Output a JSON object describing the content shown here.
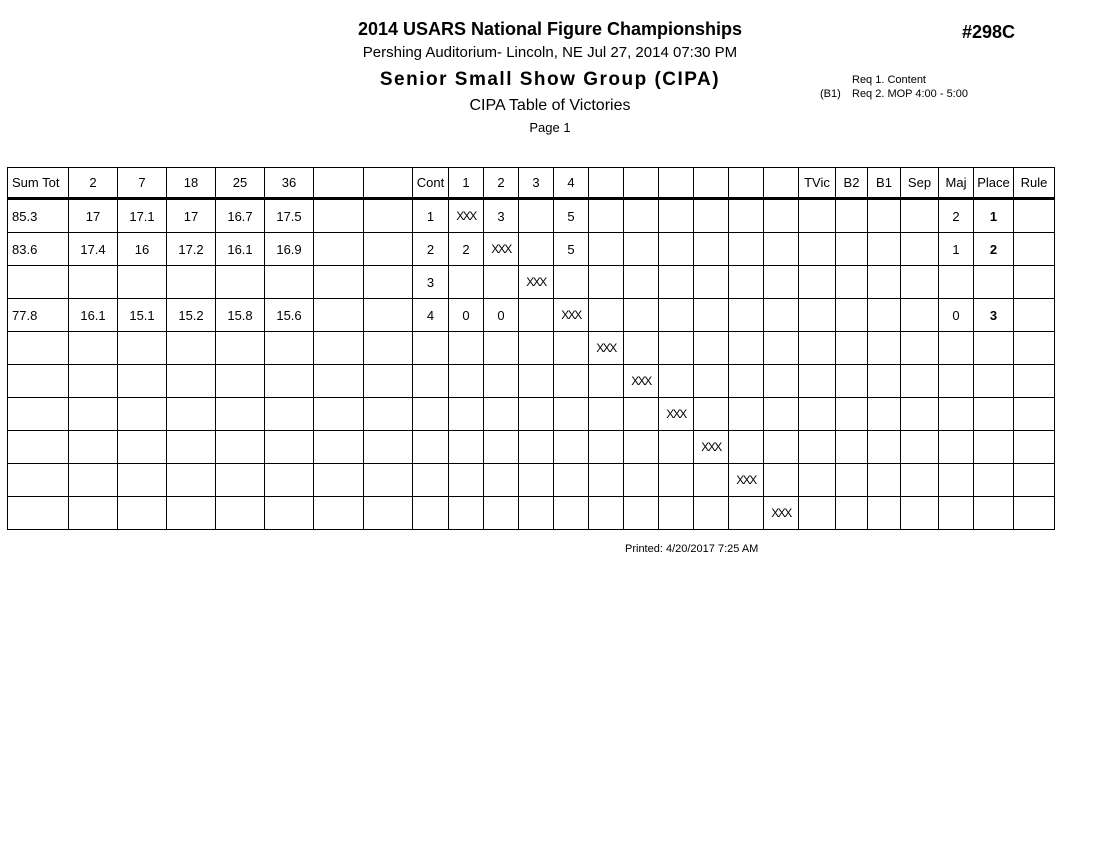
{
  "colors": {
    "ink": "#000000",
    "paper": "#ffffff"
  },
  "header": {
    "title": "2014 USARS National Figure Championships",
    "venue_line": "Pershing Auditorium- Lincoln, NE  Jul 27, 2014  07:30 PM",
    "event": "Senior Small Show Group (CIPA)",
    "subtitle": "CIPA Table of Victories",
    "page": "Page 1",
    "entry_number": "#298C",
    "requirements": [
      {
        "prefix": "",
        "text": "Req 1.  Content"
      },
      {
        "prefix": "(B1)",
        "text": "Req 2.  MOP 4:00 - 5:00"
      }
    ]
  },
  "table": {
    "columns": [
      "Sum Tot",
      "2",
      "7",
      "18",
      "25",
      "36",
      "",
      "",
      "Cont",
      "1",
      "2",
      "3",
      "4",
      "",
      "",
      "",
      "",
      "",
      "",
      "TVic",
      "B2",
      "B1",
      "Sep",
      "Maj",
      "Place",
      "Rule"
    ],
    "rows": [
      [
        "85.3",
        "17",
        "17.1",
        "17",
        "16.7",
        "17.5",
        "",
        "",
        "1",
        "XXX",
        "3",
        "",
        "5",
        "",
        "",
        "",
        "",
        "",
        "",
        "",
        "",
        "",
        "",
        "2",
        "1",
        ""
      ],
      [
        "83.6",
        "17.4",
        "16",
        "17.2",
        "16.1",
        "16.9",
        "",
        "",
        "2",
        "2",
        "XXX",
        "",
        "5",
        "",
        "",
        "",
        "",
        "",
        "",
        "",
        "",
        "",
        "",
        "1",
        "2",
        ""
      ],
      [
        "",
        "",
        "",
        "",
        "",
        "",
        "",
        "",
        "3",
        "",
        "",
        "XXX",
        "",
        "",
        "",
        "",
        "",
        "",
        "",
        "",
        "",
        "",
        "",
        "",
        "",
        ""
      ],
      [
        "77.8",
        "16.1",
        "15.1",
        "15.2",
        "15.8",
        "15.6",
        "",
        "",
        "4",
        "0",
        "0",
        "",
        "XXX",
        "",
        "",
        "",
        "",
        "",
        "",
        "",
        "",
        "",
        "",
        "0",
        "3",
        ""
      ],
      [
        "",
        "",
        "",
        "",
        "",
        "",
        "",
        "",
        "",
        "",
        "",
        "",
        "",
        "XXX",
        "",
        "",
        "",
        "",
        "",
        "",
        "",
        "",
        "",
        "",
        "",
        ""
      ],
      [
        "",
        "",
        "",
        "",
        "",
        "",
        "",
        "",
        "",
        "",
        "",
        "",
        "",
        "",
        "XXX",
        "",
        "",
        "",
        "",
        "",
        "",
        "",
        "",
        "",
        "",
        ""
      ],
      [
        "",
        "",
        "",
        "",
        "",
        "",
        "",
        "",
        "",
        "",
        "",
        "",
        "",
        "",
        "",
        "XXX",
        "",
        "",
        "",
        "",
        "",
        "",
        "",
        "",
        "",
        ""
      ],
      [
        "",
        "",
        "",
        "",
        "",
        "",
        "",
        "",
        "",
        "",
        "",
        "",
        "",
        "",
        "",
        "",
        "XXX",
        "",
        "",
        "",
        "",
        "",
        "",
        "",
        "",
        ""
      ],
      [
        "",
        "",
        "",
        "",
        "",
        "",
        "",
        "",
        "",
        "",
        "",
        "",
        "",
        "",
        "",
        "",
        "",
        "XXX",
        "",
        "",
        "",
        "",
        "",
        "",
        "",
        ""
      ],
      [
        "",
        "",
        "",
        "",
        "",
        "",
        "",
        "",
        "",
        "",
        "",
        "",
        "",
        "",
        "",
        "",
        "",
        "",
        "XXX",
        "",
        "",
        "",
        "",
        "",
        "",
        ""
      ]
    ]
  },
  "footer": {
    "printed": "Printed:  4/20/2017  7:25 AM"
  }
}
